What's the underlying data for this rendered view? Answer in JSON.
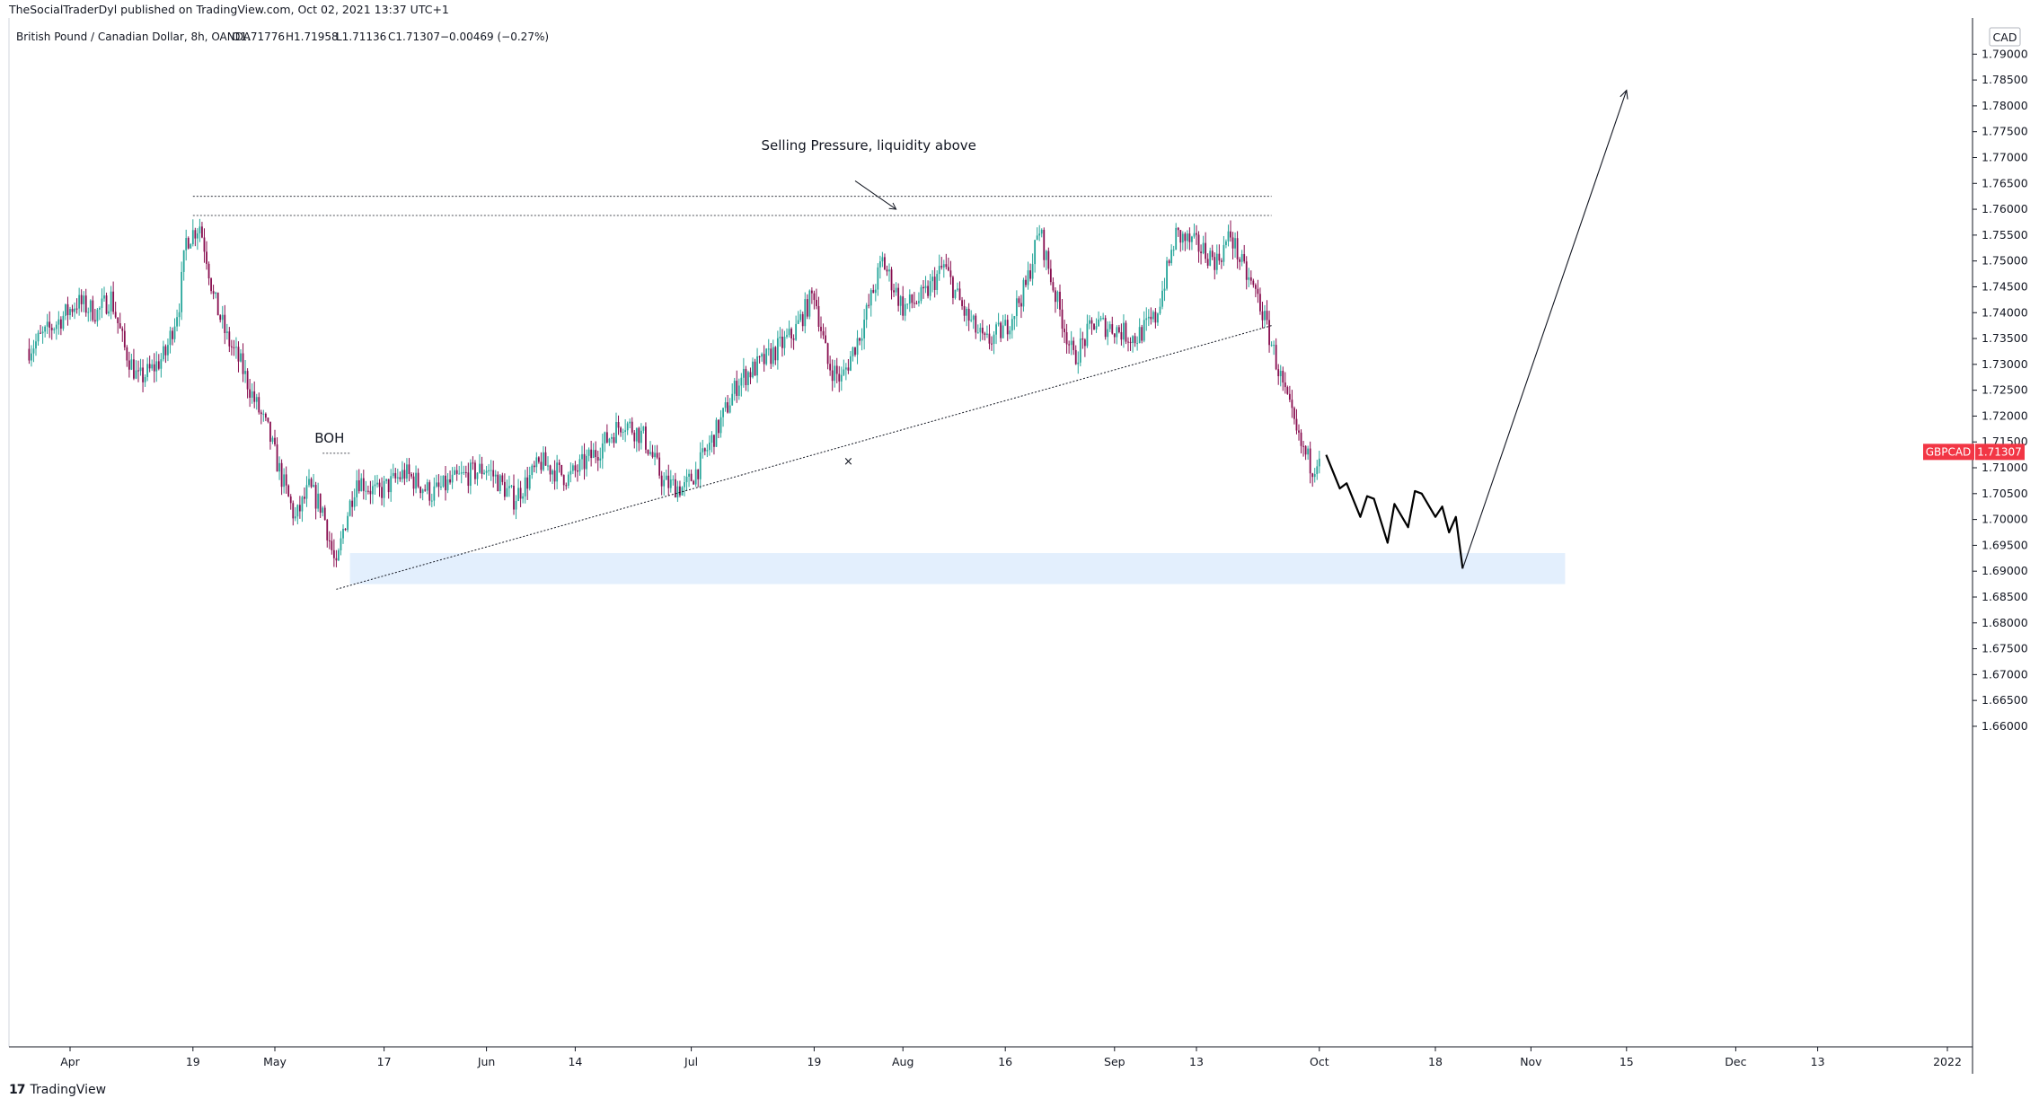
{
  "header": {
    "publisher": "TheSocialTraderDyl published on TradingView.com, Oct 02, 2021 13:37 UTC+1"
  },
  "footer": {
    "brand": "TradingView",
    "logo_glyph": "17"
  },
  "chart_data": {
    "type": "candlestick",
    "instrument": "British Pound / Canadian Dollar, 8h, OANDA",
    "ohlc_label": {
      "open": "O1.71776",
      "high": "H1.71958",
      "low": "L1.71136",
      "close": "C1.71307",
      "change": "−0.00469 (−0.27%)"
    },
    "currency": "CAD",
    "symbol_tag": {
      "symbol": "GBPCAD",
      "price": "1.71307",
      "value": 1.71307,
      "color": "#f23645"
    },
    "colors": {
      "up": "#26a69a",
      "down": "#880e4f",
      "zone": "#e3effd",
      "tag": "#f23645"
    },
    "ylim": [
      1.598,
      1.797
    ],
    "y_ticks": [
      "1.79000",
      "1.78500",
      "1.78000",
      "1.77500",
      "1.77000",
      "1.76500",
      "1.76000",
      "1.75500",
      "1.75000",
      "1.74500",
      "1.74000",
      "1.73500",
      "1.73000",
      "1.72500",
      "1.72000",
      "1.71500",
      "1.71000",
      "1.70500",
      "1.70000",
      "1.69500",
      "1.69000",
      "1.68500",
      "1.68000",
      "1.67500",
      "1.67000",
      "1.66500",
      "1.66000"
    ],
    "x_ticks": [
      "Apr",
      "19",
      "May",
      "17",
      "Jun",
      "14",
      "Jul",
      "19",
      "Aug",
      "16",
      "Sep",
      "13",
      "Oct",
      "18",
      "Nov",
      "15",
      "Dec",
      "13",
      "2022"
    ],
    "x_tick_dates": [
      "2021-04-01",
      "2021-04-19",
      "2021-05-01",
      "2021-05-17",
      "2021-06-01",
      "2021-06-14",
      "2021-07-01",
      "2021-07-19",
      "2021-08-01",
      "2021-08-16",
      "2021-09-01",
      "2021-09-13",
      "2021-10-01",
      "2021-10-18",
      "2021-11-01",
      "2021-11-15",
      "2021-12-01",
      "2021-12-13",
      "2022-01-01"
    ],
    "price_path": [
      [
        "2021-03-26",
        1.733
      ],
      [
        "2021-03-30",
        1.738
      ],
      [
        "2021-04-02",
        1.742
      ],
      [
        "2021-04-05",
        1.74
      ],
      [
        "2021-04-07",
        1.743
      ],
      [
        "2021-04-09",
        1.733
      ],
      [
        "2021-04-11",
        1.727
      ],
      [
        "2021-04-13",
        1.729
      ],
      [
        "2021-04-15",
        1.732
      ],
      [
        "2021-04-17",
        1.742
      ],
      [
        "2021-04-18",
        1.754
      ],
      [
        "2021-04-20",
        1.757
      ],
      [
        "2021-04-21",
        1.751
      ],
      [
        "2021-04-22",
        1.743
      ],
      [
        "2021-04-24",
        1.735
      ],
      [
        "2021-04-26",
        1.73
      ],
      [
        "2021-04-28",
        1.723
      ],
      [
        "2021-04-30",
        1.717
      ],
      [
        "2021-05-02",
        1.708
      ],
      [
        "2021-05-04",
        1.7
      ],
      [
        "2021-05-06",
        1.706
      ],
      [
        "2021-05-08",
        1.702
      ],
      [
        "2021-05-10",
        1.69
      ],
      [
        "2021-05-11",
        1.698
      ],
      [
        "2021-05-13",
        1.708
      ],
      [
        "2021-05-16",
        1.705
      ],
      [
        "2021-05-20",
        1.709
      ],
      [
        "2021-05-24",
        1.705
      ],
      [
        "2021-05-28",
        1.708
      ],
      [
        "2021-06-01",
        1.71
      ],
      [
        "2021-06-05",
        1.704
      ],
      [
        "2021-06-09",
        1.711
      ],
      [
        "2021-06-13",
        1.708
      ],
      [
        "2021-06-17",
        1.713
      ],
      [
        "2021-06-21",
        1.719
      ],
      [
        "2021-06-24",
        1.716
      ],
      [
        "2021-06-27",
        1.707
      ],
      [
        "2021-06-30",
        1.706
      ],
      [
        "2021-07-02",
        1.71
      ],
      [
        "2021-07-05",
        1.718
      ],
      [
        "2021-07-08",
        1.727
      ],
      [
        "2021-07-12",
        1.731
      ],
      [
        "2021-07-16",
        1.736
      ],
      [
        "2021-07-19",
        1.744
      ],
      [
        "2021-07-21",
        1.73
      ],
      [
        "2021-07-23",
        1.727
      ],
      [
        "2021-07-26",
        1.737
      ],
      [
        "2021-07-29",
        1.75
      ],
      [
        "2021-08-01",
        1.741
      ],
      [
        "2021-08-04",
        1.743
      ],
      [
        "2021-08-07",
        1.749
      ],
      [
        "2021-08-10",
        1.74
      ],
      [
        "2021-08-13",
        1.734
      ],
      [
        "2021-08-16",
        1.737
      ],
      [
        "2021-08-19",
        1.745
      ],
      [
        "2021-08-21",
        1.756
      ],
      [
        "2021-08-23",
        1.745
      ],
      [
        "2021-08-26",
        1.731
      ],
      [
        "2021-08-29",
        1.738
      ],
      [
        "2021-09-01",
        1.737
      ],
      [
        "2021-09-04",
        1.735
      ],
      [
        "2021-09-07",
        1.739
      ],
      [
        "2021-09-10",
        1.755
      ],
      [
        "2021-09-13",
        1.753
      ],
      [
        "2021-09-16",
        1.75
      ],
      [
        "2021-09-18",
        1.755
      ],
      [
        "2021-09-20",
        1.748
      ],
      [
        "2021-09-22",
        1.743
      ],
      [
        "2021-09-24",
        1.734
      ],
      [
        "2021-09-26",
        1.724
      ],
      [
        "2021-09-28",
        1.715
      ],
      [
        "2021-09-30",
        1.71
      ],
      [
        "2021-10-01",
        1.71307
      ]
    ],
    "projection": [
      [
        "2021-10-02",
        1.7125
      ],
      [
        "2021-10-04",
        1.706
      ],
      [
        "2021-10-05",
        1.707
      ],
      [
        "2021-10-07",
        1.7005
      ],
      [
        "2021-10-08",
        1.7045
      ],
      [
        "2021-10-09",
        1.704
      ],
      [
        "2021-10-11",
        1.6955
      ],
      [
        "2021-10-12",
        1.703
      ],
      [
        "2021-10-14",
        1.6985
      ],
      [
        "2021-10-15",
        1.7055
      ],
      [
        "2021-10-16",
        1.705
      ],
      [
        "2021-10-18",
        1.7005
      ],
      [
        "2021-10-19",
        1.7025
      ],
      [
        "2021-10-20",
        1.6975
      ],
      [
        "2021-10-21",
        1.7005
      ],
      [
        "2021-10-22",
        1.6905
      ]
    ],
    "arrow_target": [
      "2021-11-15",
      1.783
    ],
    "support_zone": {
      "start": "2021-05-12",
      "end": "2021-11-06",
      "low": 1.6875,
      "high": 1.6935
    },
    "trendline": {
      "from": [
        "2021-05-10",
        1.6865
      ],
      "to": [
        "2021-09-24",
        1.7375
      ]
    },
    "resistance_upper": {
      "from": [
        "2021-04-19",
        1.7625
      ],
      "to": [
        "2021-09-24",
        1.7625
      ]
    },
    "resistance_lower": {
      "from": [
        "2021-04-19",
        1.7588
      ],
      "to": [
        "2021-09-24",
        1.7588
      ]
    },
    "boh_line": {
      "from": [
        "2021-05-08",
        1.7128
      ],
      "to": [
        "2021-05-12",
        1.7128
      ]
    },
    "annotations": {
      "selling_pressure": {
        "text": "Selling Pressure, liquidity above",
        "date": "2021-07-27",
        "price": 1.7715
      },
      "boh": {
        "text": "BOH",
        "date": "2021-05-09",
        "price": 1.7138
      },
      "cross": {
        "text": "×",
        "date": "2021-07-24",
        "price": 1.7105
      },
      "pressure_arrow": {
        "from": [
          "2021-07-25",
          1.7655
        ],
        "to": [
          "2021-07-31",
          1.76
        ]
      }
    }
  }
}
